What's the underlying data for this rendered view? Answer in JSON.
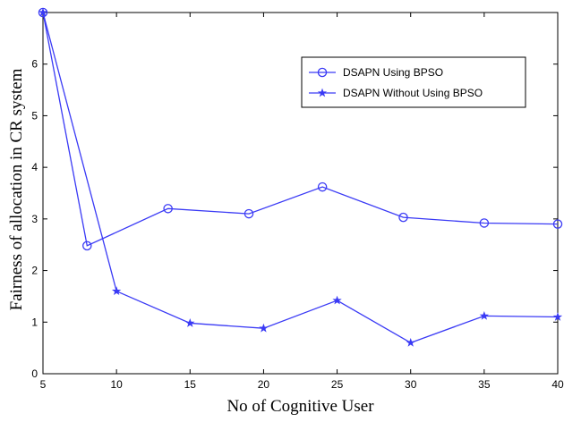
{
  "chart_data": {
    "type": "line",
    "xlabel": "No of Cognitive User",
    "ylabel": "Fairness of allocation in CR system",
    "xlim": [
      5,
      40
    ],
    "ylim": [
      0,
      7
    ],
    "xticks": [
      5,
      10,
      15,
      20,
      25,
      30,
      35,
      40
    ],
    "yticks": [
      0,
      1,
      2,
      3,
      4,
      5,
      6
    ],
    "grid": false,
    "legend_position": "top-right",
    "series": [
      {
        "name": "DSAPN Using BPSO",
        "marker": "circle",
        "color": "#3a3af5",
        "x": [
          5,
          8,
          13.5,
          19,
          24,
          29.5,
          35,
          40
        ],
        "y": [
          7.0,
          2.48,
          3.2,
          3.1,
          3.62,
          3.03,
          2.92,
          2.9
        ]
      },
      {
        "name": "DSAPN Without Using BPSO",
        "marker": "star",
        "color": "#3a3af5",
        "x": [
          5,
          10,
          15,
          20,
          25,
          30,
          35,
          40
        ],
        "y": [
          7.0,
          1.6,
          0.98,
          0.88,
          1.42,
          0.6,
          1.12,
          1.1
        ]
      }
    ]
  }
}
